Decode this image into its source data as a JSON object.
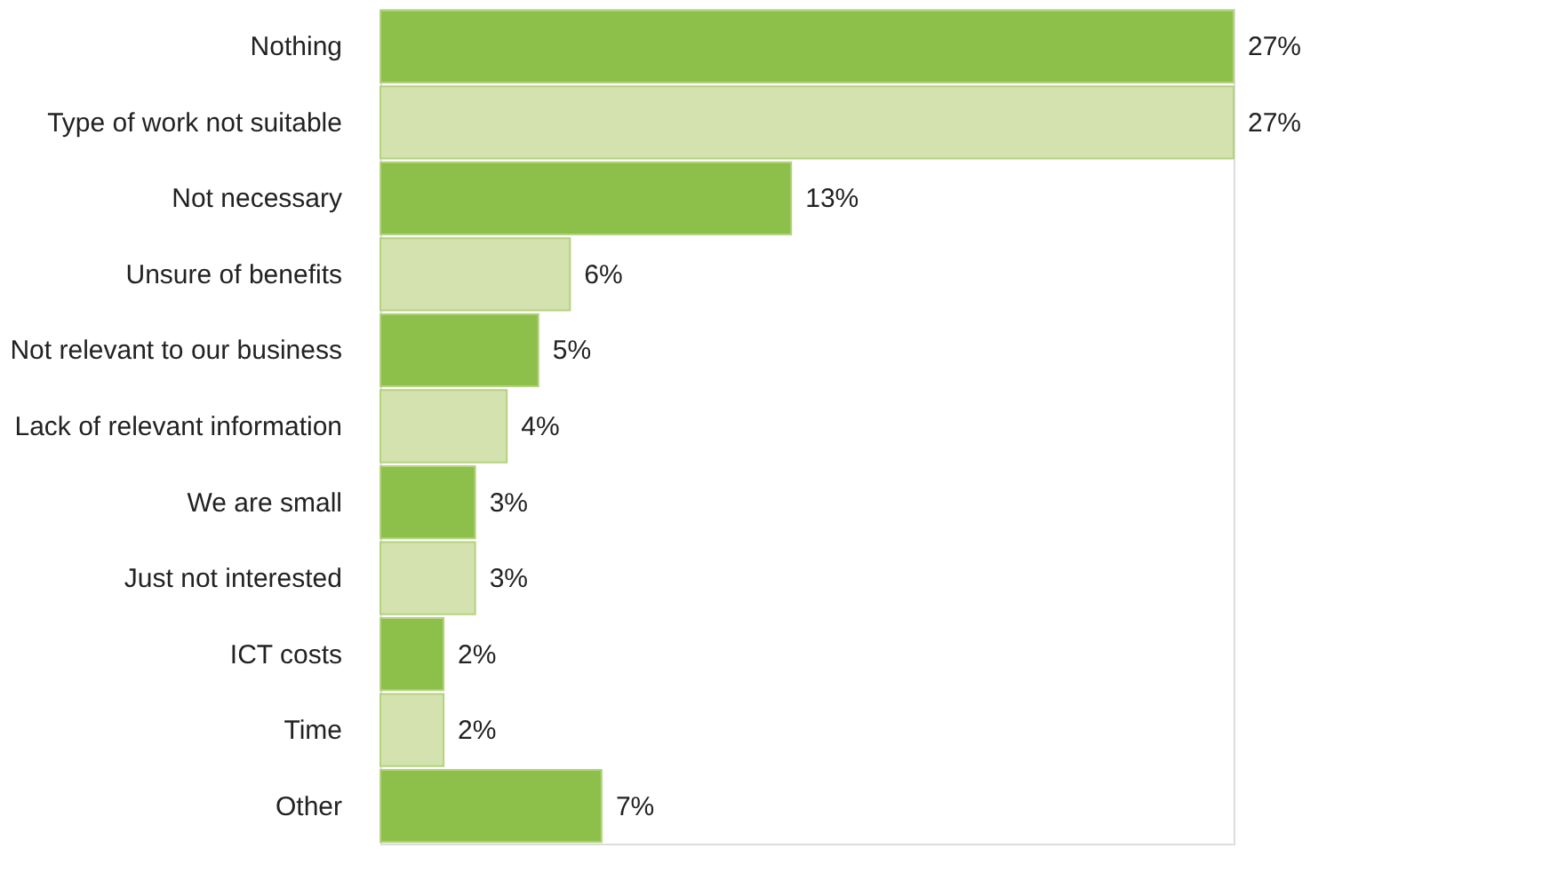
{
  "chart_data": {
    "type": "bar",
    "orientation": "horizontal",
    "categories": [
      "Nothing",
      "Type of work not suitable",
      "Not  necessary",
      "Unsure of benefits",
      "Not relevant to our business",
      "Lack of relevant information",
      "We are small",
      "Just not interested",
      "ICT costs",
      "Time",
      "Other"
    ],
    "values": [
      27,
      27,
      13,
      6,
      5,
      4,
      3,
      3,
      2,
      2,
      7
    ],
    "value_labels": [
      "27%",
      "27%",
      "13%",
      "6%",
      "5%",
      "4%",
      "3%",
      "3%",
      "2%",
      "2%",
      "7%"
    ],
    "colors": [
      "#8dc04a",
      "#d3e2ae",
      "#8dc04a",
      "#d3e2ae",
      "#8dc04a",
      "#d3e2ae",
      "#8dc04a",
      "#d3e2ae",
      "#8dc04a",
      "#d3e2ae",
      "#8dc04a"
    ],
    "grid": false
  }
}
